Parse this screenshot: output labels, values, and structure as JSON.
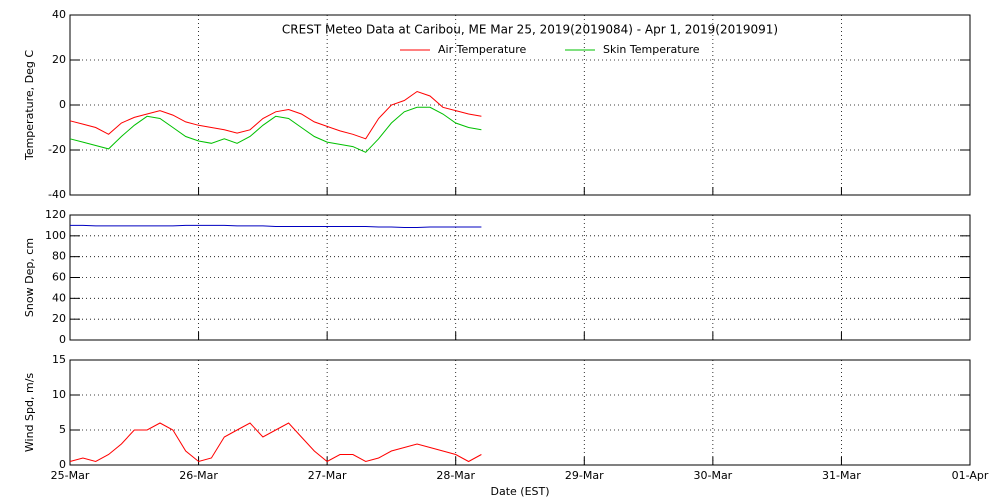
{
  "chart_data": [
    {
      "type": "line",
      "title": "CREST Meteo Data at Caribou, ME   Mar 25, 2019(2019084) - Apr  1, 2019(2019091)",
      "ylabel": "Temperature, Deg C",
      "x": [
        0,
        0.1,
        0.2,
        0.3,
        0.4,
        0.5,
        0.6,
        0.7,
        0.8,
        0.9,
        1.0,
        1.1,
        1.2,
        1.3,
        1.4,
        1.5,
        1.6,
        1.7,
        1.8,
        1.9,
        2.0,
        2.1,
        2.2,
        2.3,
        2.4,
        2.5,
        2.6,
        2.7,
        2.8,
        2.9,
        3.0,
        3.1,
        3.2
      ],
      "series": [
        {
          "name": "Air Temperature",
          "color": "#ff0000",
          "values": [
            -7,
            -8.5,
            -10,
            -13,
            -8,
            -5.5,
            -4,
            -2.5,
            -4.5,
            -7.5,
            -9,
            -10,
            -11,
            -12.5,
            -11,
            -6,
            -3,
            -2,
            -4,
            -7.5,
            -9.5,
            -11.5,
            -13,
            -15,
            -6,
            0,
            2,
            6,
            4,
            -1,
            -2.5,
            -4,
            -5
          ]
        },
        {
          "name": "Skin Temperature",
          "color": "#00c000",
          "values": [
            -15,
            -16.5,
            -18,
            -19.5,
            -14,
            -9,
            -5,
            -6,
            -10,
            -14,
            -16,
            -17,
            -15,
            -17,
            -14,
            -9,
            -5,
            -6,
            -10,
            -14,
            -16.5,
            -17.5,
            -18.5,
            -21,
            -15,
            -8,
            -3,
            -1,
            -1,
            -4,
            -8,
            -10,
            -11
          ]
        }
      ],
      "xlim": [
        0,
        7
      ],
      "xticks": [
        0,
        1,
        2,
        3,
        4,
        5,
        6,
        7
      ],
      "ylim": [
        -40,
        40
      ],
      "yticks": [
        -40,
        -20,
        0,
        20,
        40
      ],
      "grid": true
    },
    {
      "type": "line",
      "ylabel": "Snow Dep, cm",
      "color": "#0000c0",
      "x": [
        0,
        0.1,
        0.2,
        0.3,
        0.4,
        0.5,
        0.6,
        0.7,
        0.8,
        0.9,
        1.0,
        1.1,
        1.2,
        1.3,
        1.4,
        1.5,
        1.6,
        1.7,
        1.8,
        1.9,
        2.0,
        2.1,
        2.2,
        2.3,
        2.4,
        2.5,
        2.6,
        2.7,
        2.8,
        2.9,
        3.0,
        3.1,
        3.2
      ],
      "values": [
        110,
        110,
        109.5,
        109.5,
        109.5,
        109.5,
        109.5,
        109.5,
        109.5,
        110,
        110,
        110,
        110,
        109.5,
        109.5,
        109.5,
        109,
        109,
        109,
        109,
        109,
        109,
        109,
        109,
        108.5,
        108.5,
        108,
        108,
        108.5,
        108.5,
        108.5,
        108.5,
        108.5
      ],
      "xlim": [
        0,
        7
      ],
      "xticks": [
        0,
        1,
        2,
        3,
        4,
        5,
        6,
        7
      ],
      "ylim": [
        0,
        120
      ],
      "yticks": [
        0,
        20,
        40,
        60,
        80,
        100,
        120
      ],
      "grid": true
    },
    {
      "type": "line",
      "ylabel": "Wind Spd, m/s",
      "xlabel": "Date (EST)",
      "color": "#ff0000",
      "x": [
        0,
        0.1,
        0.2,
        0.3,
        0.4,
        0.5,
        0.6,
        0.7,
        0.8,
        0.9,
        1.0,
        1.1,
        1.2,
        1.3,
        1.4,
        1.5,
        1.6,
        1.7,
        1.8,
        1.9,
        2.0,
        2.1,
        2.2,
        2.3,
        2.4,
        2.5,
        2.6,
        2.7,
        2.8,
        2.9,
        3.0,
        3.1,
        3.2
      ],
      "values": [
        0.5,
        1,
        0.5,
        1.5,
        3,
        5,
        5,
        6,
        5,
        2,
        0.5,
        1,
        4,
        5,
        6,
        4,
        5,
        6,
        4,
        2,
        0.5,
        1.5,
        1.5,
        0.5,
        1,
        2,
        2.5,
        3,
        2.5,
        2,
        1.5,
        0.5,
        1.5
      ],
      "xlim": [
        0,
        7
      ],
      "xticks": [
        {
          "value": 0,
          "label": "25-Mar"
        },
        {
          "value": 1,
          "label": "26-Mar"
        },
        {
          "value": 2,
          "label": "27-Mar"
        },
        {
          "value": 3,
          "label": "28-Mar"
        },
        {
          "value": 4,
          "label": "29-Mar"
        },
        {
          "value": 5,
          "label": "30-Mar"
        },
        {
          "value": 6,
          "label": "31-Mar"
        },
        {
          "value": 7,
          "label": "01-Apr"
        }
      ],
      "ylim": [
        0,
        15
      ],
      "yticks": [
        0,
        5,
        10,
        15
      ],
      "grid": true
    }
  ]
}
